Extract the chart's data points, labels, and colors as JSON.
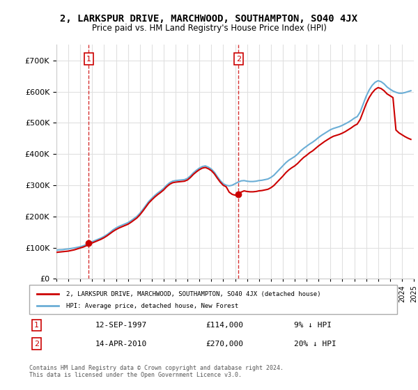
{
  "title": "2, LARKSPUR DRIVE, MARCHWOOD, SOUTHAMPTON, SO40 4JX",
  "subtitle": "Price paid vs. HM Land Registry's House Price Index (HPI)",
  "ylabel": "",
  "ylim": [
    0,
    750000
  ],
  "yticks": [
    0,
    100000,
    200000,
    300000,
    400000,
    500000,
    600000,
    700000
  ],
  "ytick_labels": [
    "£0",
    "£100K",
    "£200K",
    "£300K",
    "£400K",
    "£500K",
    "£600K",
    "£700K"
  ],
  "background_color": "#ffffff",
  "grid_color": "#e0e0e0",
  "hpi_color": "#6baed6",
  "price_color": "#cc0000",
  "sale1_x": 1997.71,
  "sale1_y": 114000,
  "sale1_label": "1",
  "sale1_date": "12-SEP-1997",
  "sale1_price": "£114,000",
  "sale1_hpi": "9% ↓ HPI",
  "sale2_x": 2010.29,
  "sale2_y": 270000,
  "sale2_label": "2",
  "sale2_date": "14-APR-2010",
  "sale2_price": "£270,000",
  "sale2_hpi": "20% ↓ HPI",
  "legend_label1": "2, LARKSPUR DRIVE, MARCHWOOD, SOUTHAMPTON, SO40 4JX (detached house)",
  "legend_label2": "HPI: Average price, detached house, New Forest",
  "footer": "Contains HM Land Registry data © Crown copyright and database right 2024.\nThis data is licensed under the Open Government Licence v3.0.",
  "xmin": 1995,
  "xmax": 2025,
  "hpi_data_x": [
    1995.0,
    1995.25,
    1995.5,
    1995.75,
    1996.0,
    1996.25,
    1996.5,
    1996.75,
    1997.0,
    1997.25,
    1997.5,
    1997.75,
    1998.0,
    1998.25,
    1998.5,
    1998.75,
    1999.0,
    1999.25,
    1999.5,
    1999.75,
    2000.0,
    2000.25,
    2000.5,
    2000.75,
    2001.0,
    2001.25,
    2001.5,
    2001.75,
    2002.0,
    2002.25,
    2002.5,
    2002.75,
    2003.0,
    2003.25,
    2003.5,
    2003.75,
    2004.0,
    2004.25,
    2004.5,
    2004.75,
    2005.0,
    2005.25,
    2005.5,
    2005.75,
    2006.0,
    2006.25,
    2006.5,
    2006.75,
    2007.0,
    2007.25,
    2007.5,
    2007.75,
    2008.0,
    2008.25,
    2008.5,
    2008.75,
    2009.0,
    2009.25,
    2009.5,
    2009.75,
    2010.0,
    2010.25,
    2010.5,
    2010.75,
    2011.0,
    2011.25,
    2011.5,
    2011.75,
    2012.0,
    2012.25,
    2012.5,
    2012.75,
    2013.0,
    2013.25,
    2013.5,
    2013.75,
    2014.0,
    2014.25,
    2014.5,
    2014.75,
    2015.0,
    2015.25,
    2015.5,
    2015.75,
    2016.0,
    2016.25,
    2016.5,
    2016.75,
    2017.0,
    2017.25,
    2017.5,
    2017.75,
    2018.0,
    2018.25,
    2018.5,
    2018.75,
    2019.0,
    2019.25,
    2019.5,
    2019.75,
    2020.0,
    2020.25,
    2020.5,
    2020.75,
    2021.0,
    2021.25,
    2021.5,
    2021.75,
    2022.0,
    2022.25,
    2022.5,
    2022.75,
    2023.0,
    2023.25,
    2023.5,
    2023.75,
    2024.0,
    2024.25,
    2024.5,
    2024.75
  ],
  "hpi_data_y": [
    92000,
    93000,
    93500,
    95000,
    96000,
    97500,
    99000,
    101000,
    103000,
    106000,
    110000,
    115000,
    119000,
    123000,
    127000,
    131000,
    136000,
    142000,
    149000,
    157000,
    163000,
    168000,
    172000,
    176000,
    180000,
    186000,
    193000,
    200000,
    210000,
    222000,
    235000,
    248000,
    258000,
    267000,
    275000,
    282000,
    290000,
    300000,
    308000,
    313000,
    315000,
    316000,
    317000,
    318000,
    322000,
    330000,
    340000,
    348000,
    355000,
    360000,
    362000,
    358000,
    352000,
    342000,
    328000,
    315000,
    305000,
    300000,
    298000,
    300000,
    305000,
    310000,
    314000,
    315000,
    313000,
    312000,
    312000,
    313000,
    315000,
    316000,
    318000,
    320000,
    325000,
    332000,
    342000,
    352000,
    362000,
    372000,
    380000,
    386000,
    392000,
    400000,
    410000,
    418000,
    425000,
    432000,
    438000,
    445000,
    453000,
    460000,
    466000,
    472000,
    478000,
    482000,
    485000,
    488000,
    492000,
    497000,
    502000,
    508000,
    515000,
    520000,
    535000,
    560000,
    585000,
    605000,
    620000,
    630000,
    635000,
    632000,
    625000,
    615000,
    608000,
    602000,
    598000,
    595000,
    595000,
    597000,
    600000,
    603000
  ],
  "price_data_x": [
    1995.0,
    1995.25,
    1995.5,
    1995.75,
    1996.0,
    1996.25,
    1996.5,
    1996.75,
    1997.0,
    1997.25,
    1997.5,
    1997.75,
    1998.0,
    1998.25,
    1998.5,
    1998.75,
    1999.0,
    1999.25,
    1999.5,
    1999.75,
    2000.0,
    2000.25,
    2000.5,
    2000.75,
    2001.0,
    2001.25,
    2001.5,
    2001.75,
    2002.0,
    2002.25,
    2002.5,
    2002.75,
    2003.0,
    2003.25,
    2003.5,
    2003.75,
    2004.0,
    2004.25,
    2004.5,
    2004.75,
    2005.0,
    2005.25,
    2005.5,
    2005.75,
    2006.0,
    2006.25,
    2006.5,
    2006.75,
    2007.0,
    2007.25,
    2007.5,
    2007.75,
    2008.0,
    2008.25,
    2008.5,
    2008.75,
    2009.0,
    2009.25,
    2009.5,
    2009.75,
    2010.0,
    2010.25,
    2010.5,
    2010.75,
    2011.0,
    2011.25,
    2011.5,
    2011.75,
    2012.0,
    2012.25,
    2012.5,
    2012.75,
    2013.0,
    2013.25,
    2013.5,
    2013.75,
    2014.0,
    2014.25,
    2014.5,
    2014.75,
    2015.0,
    2015.25,
    2015.5,
    2015.75,
    2016.0,
    2016.25,
    2016.5,
    2016.75,
    2017.0,
    2017.25,
    2017.5,
    2017.75,
    2018.0,
    2018.25,
    2018.5,
    2018.75,
    2019.0,
    2019.25,
    2019.5,
    2019.75,
    2020.0,
    2020.25,
    2020.5,
    2020.75,
    2021.0,
    2021.25,
    2021.5,
    2021.75,
    2022.0,
    2022.25,
    2022.5,
    2022.75,
    2023.0,
    2023.25,
    2023.5,
    2023.75,
    2024.0,
    2024.25,
    2024.5,
    2024.75
  ],
  "price_data_y": [
    85000,
    86000,
    87000,
    88000,
    89000,
    91000,
    93000,
    96000,
    99000,
    102000,
    106000,
    110000,
    115000,
    119000,
    123000,
    127000,
    132000,
    138000,
    145000,
    152000,
    158000,
    163000,
    167000,
    171000,
    175000,
    181000,
    188000,
    195000,
    205000,
    217000,
    230000,
    243000,
    253000,
    262000,
    270000,
    277000,
    285000,
    295000,
    303000,
    308000,
    310000,
    311000,
    312000,
    313000,
    317000,
    325000,
    335000,
    343000,
    350000,
    355000,
    357000,
    353000,
    347000,
    337000,
    323000,
    310000,
    300000,
    295000,
    278000,
    271000,
    268000,
    272000,
    278000,
    282000,
    280000,
    279000,
    279000,
    280000,
    282000,
    283000,
    285000,
    287000,
    292000,
    299000,
    309000,
    319000,
    329000,
    340000,
    349000,
    356000,
    362000,
    370000,
    380000,
    389000,
    396000,
    404000,
    410000,
    418000,
    426000,
    433000,
    440000,
    446000,
    452000,
    457000,
    460000,
    463000,
    467000,
    472000,
    478000,
    484000,
    491000,
    496000,
    511000,
    536000,
    561000,
    581000,
    596000,
    607000,
    613000,
    610000,
    603000,
    593000,
    587000,
    581000,
    477000,
    468000,
    462000,
    456000,
    451000,
    447000
  ]
}
